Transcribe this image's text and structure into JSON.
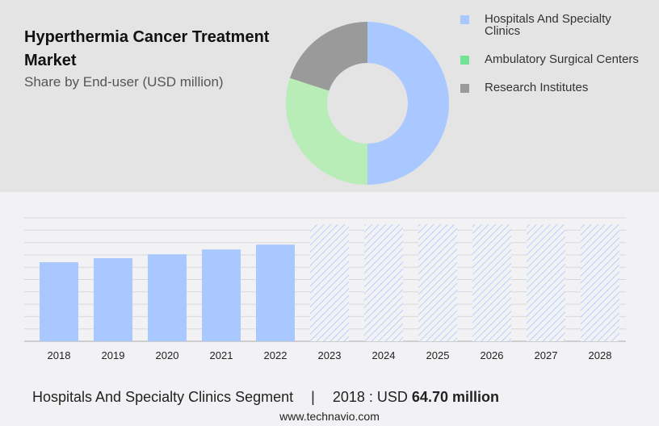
{
  "header": {
    "title": "Hyperthermia Cancer Treatment Market",
    "subtitle": "Share by End-user (USD million)"
  },
  "colors": {
    "hospitals": "#a8c8ff",
    "ambulatory": "#b8edb8",
    "research": "#9a9a9a",
    "legend_ambulatory": "#72e296"
  },
  "chart_data": [
    {
      "type": "pie",
      "donut": true,
      "title": "Hyperthermia Cancer Treatment Market",
      "subtitle": "Share by End-user (USD million)",
      "legend_position": "right",
      "slices": [
        {
          "name": "Hospitals And Specialty Clinics",
          "value": 50
        },
        {
          "name": "Ambulatory Surgical Centers",
          "value": 30
        },
        {
          "name": "Research Institutes",
          "value": 20
        }
      ]
    },
    {
      "type": "bar",
      "categories": [
        "2018",
        "2019",
        "2020",
        "2021",
        "2022",
        "2023",
        "2024",
        "2025",
        "2026",
        "2027",
        "2028"
      ],
      "values": [
        64.7,
        68.0,
        71.2,
        75.1,
        79.1,
        null,
        null,
        null,
        null,
        null,
        null
      ],
      "forecast_categories": [
        "2023",
        "2024",
        "2025",
        "2026",
        "2027",
        "2028"
      ],
      "grid": true,
      "ylim": [
        0,
        100
      ]
    }
  ],
  "footer": {
    "segment": "Hospitals And Specialty Clinics Segment",
    "separator": "|",
    "year_label": "2018 : USD",
    "value": "64.70 million",
    "url": "www.technavio.com"
  }
}
